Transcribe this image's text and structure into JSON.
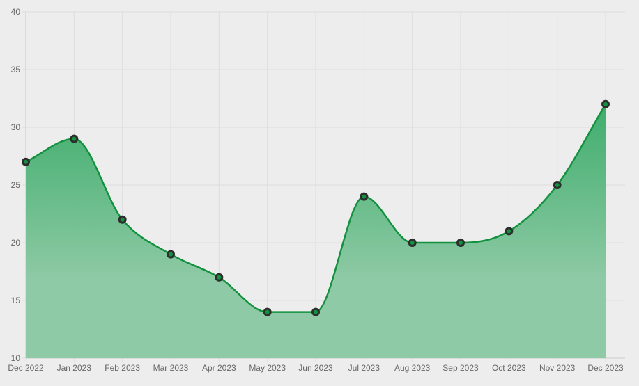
{
  "chart_data": {
    "type": "area",
    "title": "",
    "xlabel": "",
    "ylabel": "",
    "x": [
      "Dec 2022",
      "Jan 2023",
      "Feb 2023",
      "Mar 2023",
      "Apr 2023",
      "May 2023",
      "Jun 2023",
      "Jul 2023",
      "Aug 2023",
      "Sep 2023",
      "Oct 2023",
      "Nov 2023",
      "Dec 2023"
    ],
    "series": [
      {
        "values": [
          27,
          29,
          22,
          19,
          17,
          14,
          14,
          24,
          20,
          20,
          21,
          25,
          32
        ],
        "line_color": "#13913f",
        "fill_top_color": "#3fad6c",
        "fill_bottom_color": "#8fcaa6",
        "marker_color": "#2d2d2d"
      }
    ],
    "ylim": [
      10,
      40
    ],
    "yticks": [
      10,
      15,
      20,
      25,
      30,
      35,
      40
    ],
    "grid": true,
    "legend": "none",
    "background_color": "#ededed",
    "grid_color": "#dddddd"
  }
}
